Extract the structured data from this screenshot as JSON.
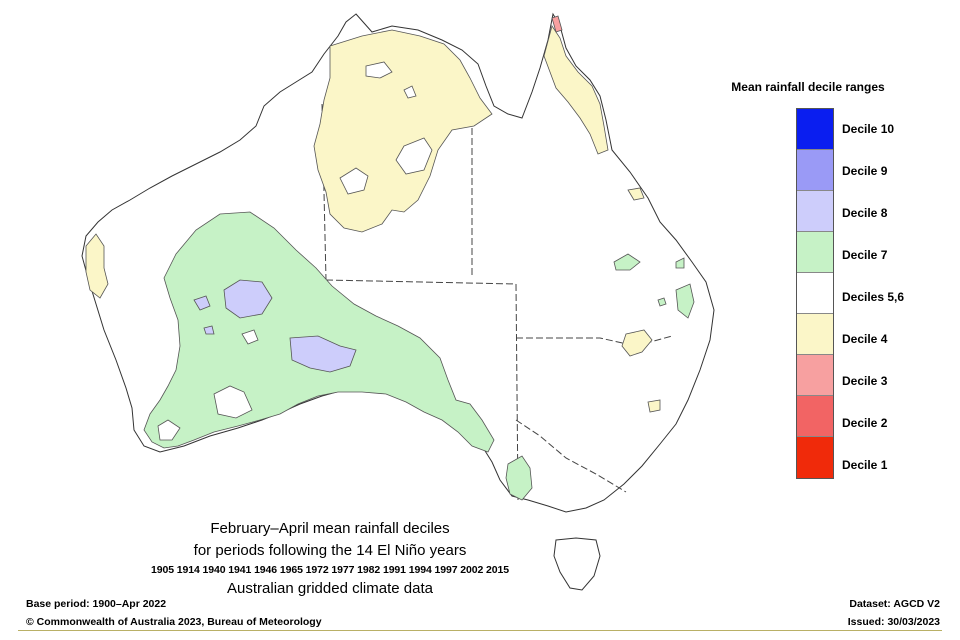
{
  "legend": {
    "title": "Mean rainfall decile ranges",
    "items": [
      {
        "label": "Decile 10",
        "color": "#0a1ef0"
      },
      {
        "label": "Decile 9",
        "color": "#9a9af6"
      },
      {
        "label": "Decile 8",
        "color": "#cdcdfb"
      },
      {
        "label": "Decile 7",
        "color": "#c6f2c6"
      },
      {
        "label": "Deciles 5,6",
        "color": "#ffffff"
      },
      {
        "label": "Decile 4",
        "color": "#fbf6c8"
      },
      {
        "label": "Decile 3",
        "color": "#f7a0a0"
      },
      {
        "label": "Decile 2",
        "color": "#f26464"
      },
      {
        "label": "Decile 1",
        "color": "#f02a0a"
      }
    ]
  },
  "title": {
    "line1": "February–April mean rainfall deciles",
    "line2": "for periods following the 14 El Niño years",
    "years": "1905 1914 1940 1941 1946 1965 1972 1977 1982 1991 1994 1997 2002 2015",
    "line4": "Australian gridded climate data"
  },
  "footer": {
    "base_period": "Base period: 1900–Apr 2022",
    "copyright": "© Commonwealth of Australia 2023, Bureau of Meteorology",
    "dataset": "Dataset: AGCD V2",
    "issued": "Issued: 30/03/2023"
  }
}
